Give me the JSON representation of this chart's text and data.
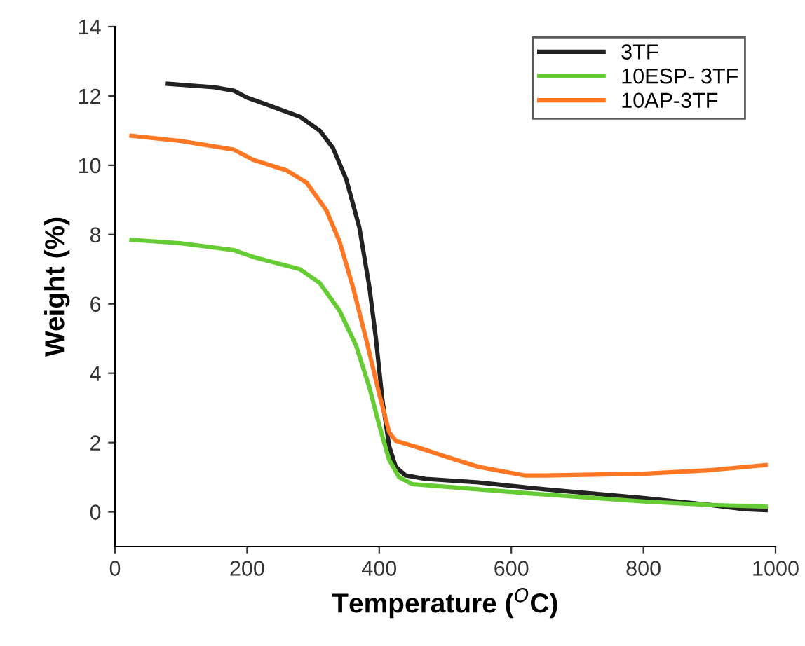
{
  "chart_data": {
    "type": "line",
    "xlabel": "Temperature ($^{O}$C)",
    "ylabel": "Weight (%)",
    "xlim": [
      0,
      1000
    ],
    "xticks": [
      0,
      200,
      400,
      600,
      800,
      1000
    ],
    "ylim": [
      -1,
      14
    ],
    "yticks": [
      0,
      2,
      4,
      6,
      8,
      10,
      12,
      14
    ],
    "grid": false,
    "legend": "top right",
    "line_style": "solid",
    "series": [
      {
        "name": "3TF",
        "color": "#222222",
        "x": [
          80,
          150,
          180,
          200,
          230,
          280,
          310,
          330,
          350,
          370,
          385,
          395,
          405,
          415,
          425,
          440,
          470,
          550,
          650,
          800,
          900,
          950,
          985
        ],
        "values": [
          12.35,
          12.25,
          12.15,
          11.95,
          11.75,
          11.4,
          11.0,
          10.5,
          9.6,
          8.2,
          6.5,
          5,
          3.2,
          1.9,
          1.3,
          1.05,
          0.95,
          0.85,
          0.65,
          0.4,
          0.2,
          0.08,
          0.05
        ]
      },
      {
        "name": "10ESP- 3TF",
        "color": "#66cc33",
        "x": [
          25,
          100,
          180,
          210,
          240,
          280,
          310,
          340,
          365,
          385,
          400,
          415,
          430,
          450,
          550,
          650,
          800,
          900,
          985
        ],
        "values": [
          7.85,
          7.75,
          7.55,
          7.35,
          7.2,
          7.0,
          6.6,
          5.8,
          4.8,
          3.6,
          2.5,
          1.5,
          1.0,
          0.8,
          0.65,
          0.5,
          0.3,
          0.2,
          0.15
        ]
      },
      {
        "name": "10AP-3TF",
        "color": "#ff7722",
        "x": [
          25,
          100,
          180,
          210,
          260,
          290,
          320,
          340,
          360,
          380,
          400,
          415,
          425,
          460,
          500,
          550,
          620,
          650,
          800,
          900,
          985
        ],
        "values": [
          10.85,
          10.7,
          10.45,
          10.15,
          9.85,
          9.5,
          8.7,
          7.8,
          6.5,
          5,
          3.4,
          2.3,
          2.05,
          1.85,
          1.6,
          1.3,
          1.05,
          1.05,
          1.1,
          1.2,
          1.35
        ]
      }
    ]
  }
}
